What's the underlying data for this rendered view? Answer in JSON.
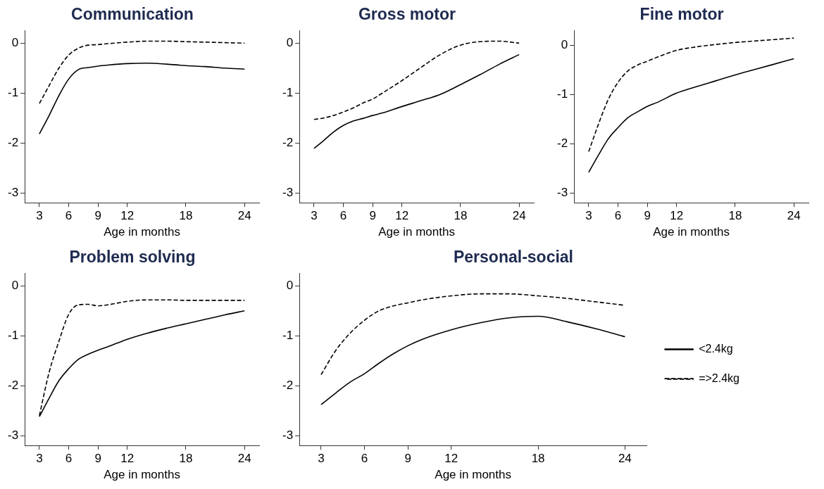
{
  "chart_data": [
    {
      "type": "line",
      "title": "Communication",
      "xlabel": "Age in months",
      "x": [
        3,
        4,
        5,
        6,
        7,
        8,
        9,
        10,
        12,
        14,
        16,
        18,
        20,
        22,
        24
      ],
      "xlim": [
        1.5,
        25.5
      ],
      "xticks": [
        3,
        6,
        9,
        12,
        18,
        24
      ],
      "ylim": [
        -3.2,
        0.25
      ],
      "yticks": [
        0,
        -1,
        -2,
        -3
      ],
      "marker": "none",
      "series": [
        {
          "color": "#000000",
          "line_style": "solid",
          "values": [
            -1.82,
            -1.45,
            -1.05,
            -0.72,
            -0.53,
            -0.49,
            -0.46,
            -0.44,
            -0.41,
            -0.4,
            -0.42,
            -0.45,
            -0.47,
            -0.5,
            -0.52
          ]
        },
        {
          "color": "#000000",
          "line_style": "dashed",
          "values": [
            -1.21,
            -0.85,
            -0.5,
            -0.24,
            -0.1,
            -0.04,
            -0.03,
            -0.01,
            0.02,
            0.04,
            0.04,
            0.03,
            0.02,
            0.01,
            0.0
          ]
        }
      ]
    },
    {
      "type": "line",
      "title": "Gross motor",
      "xlabel": "Age in months",
      "x": [
        3,
        4,
        5,
        6,
        7,
        8,
        9,
        10,
        12,
        14,
        16,
        18,
        20,
        22,
        24
      ],
      "xlim": [
        1.5,
        25.5
      ],
      "xticks": [
        3,
        6,
        9,
        12,
        18,
        24
      ],
      "ylim": [
        -3.2,
        0.25
      ],
      "yticks": [
        0,
        -1,
        -2,
        -3
      ],
      "marker": "none",
      "series": [
        {
          "color": "#000000",
          "line_style": "solid",
          "values": [
            -2.11,
            -1.95,
            -1.78,
            -1.65,
            -1.56,
            -1.51,
            -1.45,
            -1.4,
            -1.27,
            -1.15,
            -1.02,
            -0.83,
            -0.63,
            -0.42,
            -0.23
          ]
        },
        {
          "color": "#000000",
          "line_style": "dashed",
          "values": [
            -1.53,
            -1.5,
            -1.45,
            -1.38,
            -1.3,
            -1.2,
            -1.12,
            -1.0,
            -0.75,
            -0.48,
            -0.22,
            -0.04,
            0.03,
            0.04,
            0.0
          ]
        }
      ]
    },
    {
      "type": "line",
      "title": "Fine motor",
      "xlabel": "Age in months",
      "x": [
        3,
        4,
        5,
        6,
        7,
        8,
        9,
        10,
        12,
        14,
        16,
        18,
        20,
        22,
        24
      ],
      "xlim": [
        1.5,
        25.5
      ],
      "xticks": [
        3,
        6,
        9,
        12,
        18,
        24
      ],
      "ylim": [
        -3.2,
        0.3
      ],
      "yticks": [
        0,
        -1,
        -2,
        -3
      ],
      "marker": "none",
      "series": [
        {
          "color": "#000000",
          "line_style": "solid",
          "values": [
            -2.58,
            -2.23,
            -1.9,
            -1.67,
            -1.47,
            -1.35,
            -1.24,
            -1.16,
            -0.97,
            -0.84,
            -0.72,
            -0.6,
            -0.49,
            -0.38,
            -0.27
          ]
        },
        {
          "color": "#000000",
          "line_style": "dashed",
          "values": [
            -2.16,
            -1.6,
            -1.1,
            -0.75,
            -0.52,
            -0.4,
            -0.32,
            -0.24,
            -0.1,
            -0.03,
            0.02,
            0.06,
            0.09,
            0.12,
            0.15
          ]
        }
      ]
    },
    {
      "type": "line",
      "title": "Problem solving",
      "xlabel": "Age in months",
      "x": [
        3,
        4,
        5,
        6,
        7,
        8,
        9,
        10,
        12,
        14,
        16,
        18,
        20,
        22,
        24
      ],
      "xlim": [
        1.5,
        25.5
      ],
      "xticks": [
        3,
        6,
        9,
        12,
        18,
        24
      ],
      "ylim": [
        -3.2,
        0.25
      ],
      "yticks": [
        0,
        -1,
        -2,
        -3
      ],
      "marker": "none",
      "series": [
        {
          "color": "#000000",
          "line_style": "solid",
          "values": [
            -2.62,
            -2.25,
            -1.9,
            -1.66,
            -1.47,
            -1.37,
            -1.29,
            -1.22,
            -1.07,
            -0.95,
            -0.85,
            -0.76,
            -0.67,
            -0.58,
            -0.5
          ]
        },
        {
          "color": "#000000",
          "line_style": "dashed",
          "values": [
            -2.6,
            -1.73,
            -1.11,
            -0.57,
            -0.38,
            -0.37,
            -0.4,
            -0.38,
            -0.31,
            -0.28,
            -0.28,
            -0.29,
            -0.29,
            -0.29,
            -0.29
          ]
        }
      ]
    },
    {
      "type": "line",
      "title": "Personal-social",
      "xlabel": "Age in months",
      "x": [
        3,
        4,
        5,
        6,
        7,
        8,
        9,
        10,
        12,
        14,
        16,
        18,
        20,
        22,
        24
      ],
      "xlim": [
        1.5,
        25.5
      ],
      "xticks": [
        3,
        6,
        9,
        12,
        18,
        24
      ],
      "ylim": [
        -3.2,
        0.25
      ],
      "yticks": [
        0,
        -1,
        -2,
        -3
      ],
      "marker": "none",
      "legend": "right",
      "series": [
        {
          "name": "<2.4kg",
          "color": "#000000",
          "line_style": "solid",
          "values": [
            -2.38,
            -2.15,
            -1.93,
            -1.76,
            -1.55,
            -1.36,
            -1.2,
            -1.07,
            -0.88,
            -0.74,
            -0.64,
            -0.61,
            -0.72,
            -0.86,
            -1.02
          ]
        },
        {
          "name": "=>2.4kg",
          "color": "#000000",
          "line_style": "dashed",
          "values": [
            -1.78,
            -1.3,
            -0.95,
            -0.69,
            -0.5,
            -0.4,
            -0.34,
            -0.28,
            -0.2,
            -0.16,
            -0.16,
            -0.2,
            -0.25,
            -0.32,
            -0.39
          ]
        }
      ]
    }
  ]
}
